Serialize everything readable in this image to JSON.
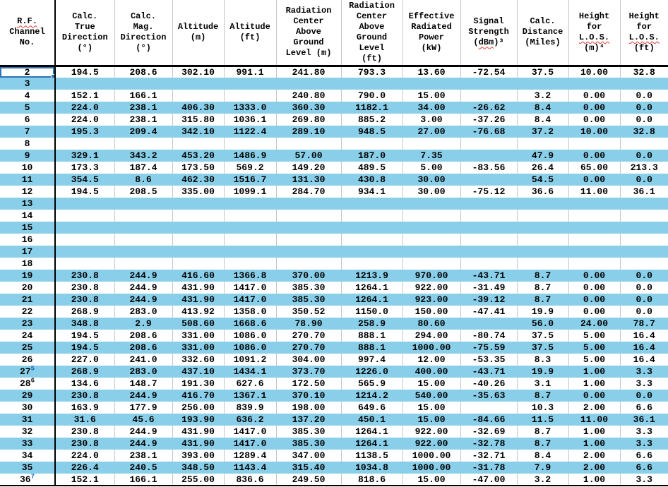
{
  "table": {
    "selected_channel": "2",
    "columns": [
      {
        "header": "R.F.\nChannel\nNo.",
        "squiggle": [
          "R.F."
        ]
      },
      {
        "header": "Calc.\nTrue\nDirection\n(°)"
      },
      {
        "header": "Calc.\nMag.\nDirection\n(°)"
      },
      {
        "header": "Altitude\n(m)"
      },
      {
        "header": "Altitude\n(ft)"
      },
      {
        "header": "Radiation\nCenter\nAbove\nGround\nLevel (m)"
      },
      {
        "header": "Radiation\nCenter\nAbove\nGround\nLevel\n(ft)"
      },
      {
        "header": "Effective\nRadiated\nPower\n(kW)"
      },
      {
        "header": "Signal\nStrength\n(dBm)³",
        "squiggle": [
          "dBm"
        ]
      },
      {
        "header": "Calc.\nDistance\n(Miles)"
      },
      {
        "header": "Height\nfor\nL.O.S.\n(m)⁴",
        "squiggle": [
          "L.O.S."
        ]
      },
      {
        "header": "Height\nfor\nL.O.S.\n(ft)",
        "squiggle": [
          "L.O.S."
        ]
      }
    ],
    "rows": [
      {
        "channel": "2",
        "values": [
          "194.5",
          "208.6",
          "302.10",
          "991.1",
          "241.80",
          "793.3",
          "13.60",
          "-72.54",
          "37.5",
          "10.00",
          "32.8"
        ]
      },
      {
        "channel": "3",
        "values": [
          "",
          "",
          "",
          "",
          "",
          "",
          "",
          "",
          "",
          "",
          ""
        ]
      },
      {
        "channel": "4",
        "values": [
          "152.1",
          "166.1",
          "",
          "",
          "240.80",
          "790.0",
          "15.00",
          "",
          "3.2",
          "0.00",
          "0.0"
        ]
      },
      {
        "channel": "5",
        "values": [
          "224.0",
          "238.1",
          "406.30",
          "1333.0",
          "360.30",
          "1182.1",
          "34.00",
          "-26.62",
          "8.4",
          "0.00",
          "0.0"
        ]
      },
      {
        "channel": "6",
        "values": [
          "224.0",
          "238.1",
          "315.80",
          "1036.1",
          "269.80",
          "885.2",
          "3.00",
          "-37.26",
          "8.4",
          "0.00",
          "0.0"
        ]
      },
      {
        "channel": "7",
        "values": [
          "195.3",
          "209.4",
          "342.10",
          "1122.4",
          "289.10",
          "948.5",
          "27.00",
          "-76.68",
          "37.2",
          "10.00",
          "32.8"
        ]
      },
      {
        "channel": "8",
        "values": [
          "",
          "",
          "",
          "",
          "",
          "",
          "",
          "",
          "",
          "",
          ""
        ]
      },
      {
        "channel": "9",
        "values": [
          "329.1",
          "343.2",
          "453.20",
          "1486.9",
          "57.00",
          "187.0",
          "7.35",
          "",
          "47.9",
          "0.00",
          "0.0"
        ]
      },
      {
        "channel": "10",
        "values": [
          "173.3",
          "187.4",
          "173.50",
          "569.2",
          "149.20",
          "489.5",
          "5.00",
          "-83.56",
          "26.4",
          "65.00",
          "213.3"
        ]
      },
      {
        "channel": "11",
        "values": [
          "354.5",
          "8.6",
          "462.30",
          "1516.7",
          "131.30",
          "430.8",
          "30.00",
          "",
          "54.5",
          "0.00",
          "0.0"
        ]
      },
      {
        "channel": "12",
        "values": [
          "194.5",
          "208.5",
          "335.00",
          "1099.1",
          "284.70",
          "934.1",
          "30.00",
          "-75.12",
          "36.6",
          "11.00",
          "36.1"
        ]
      },
      {
        "channel": "13",
        "values": [
          "",
          "",
          "",
          "",
          "",
          "",
          "",
          "",
          "",
          "",
          ""
        ]
      },
      {
        "channel": "14",
        "values": [
          "",
          "",
          "",
          "",
          "",
          "",
          "",
          "",
          "",
          "",
          ""
        ]
      },
      {
        "channel": "15",
        "values": [
          "",
          "",
          "",
          "",
          "",
          "",
          "",
          "",
          "",
          "",
          ""
        ]
      },
      {
        "channel": "16",
        "values": [
          "",
          "",
          "",
          "",
          "",
          "",
          "",
          "",
          "",
          "",
          ""
        ]
      },
      {
        "channel": "17",
        "values": [
          "",
          "",
          "",
          "",
          "",
          "",
          "",
          "",
          "",
          "",
          ""
        ]
      },
      {
        "channel": "18",
        "values": [
          "",
          "",
          "",
          "",
          "",
          "",
          "",
          "",
          "",
          "",
          ""
        ]
      },
      {
        "channel": "19",
        "values": [
          "230.8",
          "244.9",
          "416.60",
          "1366.8",
          "370.00",
          "1213.9",
          "970.00",
          "-43.71",
          "8.7",
          "0.00",
          "0.0"
        ]
      },
      {
        "channel": "20",
        "values": [
          "230.8",
          "244.9",
          "431.90",
          "1417.0",
          "385.30",
          "1264.1",
          "922.00",
          "-31.49",
          "8.7",
          "0.00",
          "0.0"
        ]
      },
      {
        "channel": "21",
        "values": [
          "230.8",
          "244.9",
          "431.90",
          "1417.0",
          "385.30",
          "1264.1",
          "923.00",
          "-39.12",
          "8.7",
          "0.00",
          "0.0"
        ]
      },
      {
        "channel": "22",
        "values": [
          "268.9",
          "283.0",
          "413.92",
          "1358.0",
          "350.52",
          "1150.0",
          "150.00",
          "-47.41",
          "19.9",
          "0.00",
          "0.0"
        ]
      },
      {
        "channel": "23",
        "values": [
          "348.8",
          "2.9",
          "508.60",
          "1668.6",
          "78.90",
          "258.9",
          "80.60",
          "",
          "56.0",
          "24.00",
          "78.7"
        ]
      },
      {
        "channel": "24",
        "values": [
          "194.5",
          "208.6",
          "331.00",
          "1086.0",
          "270.70",
          "888.1",
          "294.00",
          "-80.74",
          "37.5",
          "5.00",
          "16.4"
        ]
      },
      {
        "channel": "25",
        "values": [
          "194.5",
          "208.6",
          "331.00",
          "1086.0",
          "270.70",
          "888.1",
          "1000.00",
          "-75.59",
          "37.5",
          "5.00",
          "16.4"
        ]
      },
      {
        "channel": "26",
        "values": [
          "227.0",
          "241.0",
          "332.60",
          "1091.2",
          "304.00",
          "997.4",
          "12.00",
          "-53.35",
          "8.3",
          "5.00",
          "16.4"
        ]
      },
      {
        "channel": "27",
        "sup": "5",
        "sup_color": "#0563C1",
        "values": [
          "268.9",
          "283.0",
          "437.10",
          "1434.1",
          "373.70",
          "1226.0",
          "400.00",
          "-43.71",
          "19.9",
          "1.00",
          "3.3"
        ]
      },
      {
        "channel": "28",
        "sup": "6",
        "sup_color": "#1a1a1a",
        "values": [
          "134.6",
          "148.7",
          "191.30",
          "627.6",
          "172.50",
          "565.9",
          "15.00",
          "-40.26",
          "3.1",
          "1.00",
          "3.3"
        ]
      },
      {
        "channel": "29",
        "values": [
          "230.8",
          "244.9",
          "416.70",
          "1367.1",
          "370.10",
          "1214.2",
          "540.00",
          "-35.63",
          "8.7",
          "0.00",
          "0.0"
        ]
      },
      {
        "channel": "30",
        "values": [
          "163.9",
          "177.9",
          "256.00",
          "839.9",
          "198.00",
          "649.6",
          "15.00",
          "",
          "10.3",
          "2.00",
          "6.6"
        ]
      },
      {
        "channel": "31",
        "values": [
          "31.6",
          "45.6",
          "193.90",
          "636.2",
          "137.20",
          "450.1",
          "15.00",
          "-84.66",
          "11.5",
          "11.00",
          "36.1"
        ]
      },
      {
        "channel": "32",
        "values": [
          "230.8",
          "244.9",
          "431.90",
          "1417.0",
          "385.30",
          "1264.1",
          "922.00",
          "-32.69",
          "8.7",
          "1.00",
          "3.3"
        ]
      },
      {
        "channel": "33",
        "values": [
          "230.8",
          "244.9",
          "431.90",
          "1417.0",
          "385.30",
          "1264.1",
          "922.00",
          "-32.78",
          "8.7",
          "1.00",
          "3.3"
        ]
      },
      {
        "channel": "34",
        "values": [
          "224.0",
          "238.1",
          "393.00",
          "1289.4",
          "347.00",
          "1138.5",
          "1000.00",
          "-32.71",
          "8.4",
          "2.00",
          "6.6"
        ]
      },
      {
        "channel": "35",
        "values": [
          "226.4",
          "240.5",
          "348.50",
          "1143.4",
          "315.40",
          "1034.8",
          "1000.00",
          "-31.78",
          "7.9",
          "2.00",
          "6.6"
        ]
      },
      {
        "channel": "36",
        "sup": "7",
        "sup_color": "#0563C1",
        "values": [
          "152.1",
          "166.1",
          "255.00",
          "836.6",
          "249.50",
          "818.6",
          "15.00",
          "-47.00",
          "3.2",
          "1.00",
          "3.3"
        ]
      }
    ]
  },
  "colors": {
    "row_highlight": "#89CFE9",
    "selection_border": "#2E75B6",
    "squiggle_red": "#E03C31",
    "footnote_link_blue": "#0563C1",
    "grid_line": "#C6C6C6"
  }
}
